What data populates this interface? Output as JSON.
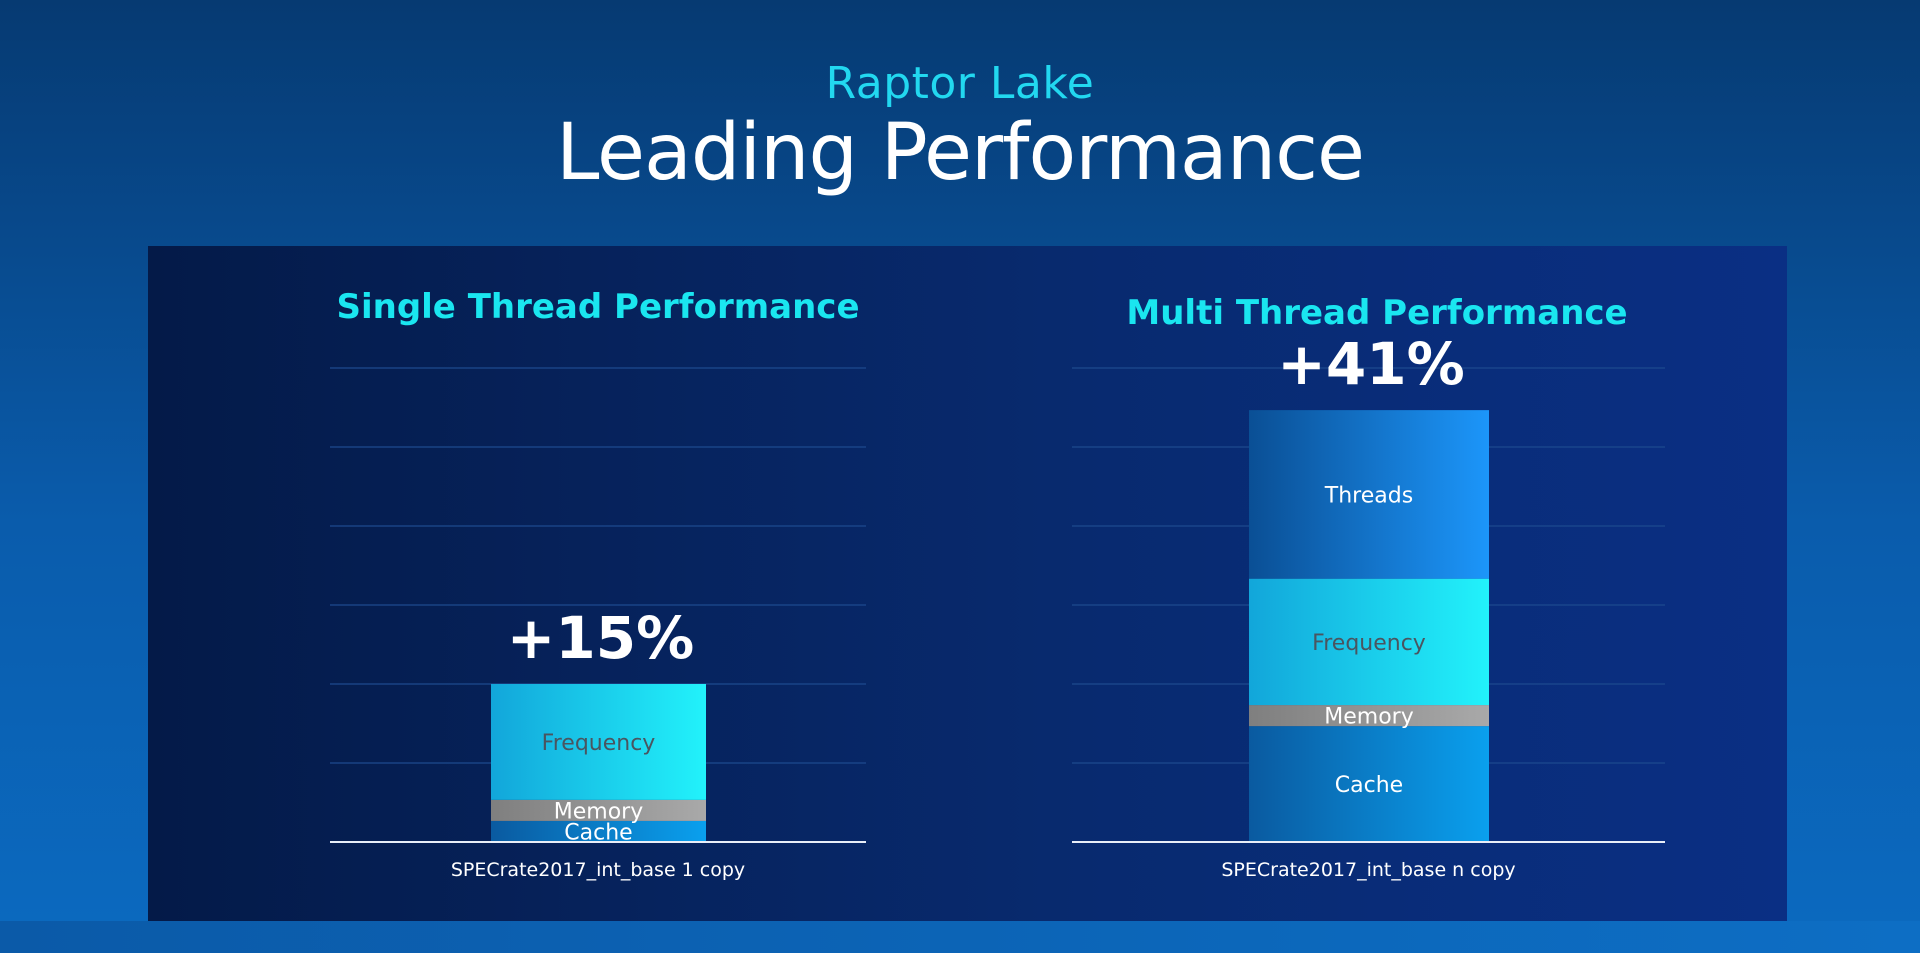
{
  "header": {
    "subtitle": "Raptor Lake",
    "title": "Leading Performance"
  },
  "chart_data": [
    {
      "type": "bar",
      "stacked": true,
      "title": "Single Thread Performance",
      "xlabel": "SPECrate2017_int_base 1 copy",
      "total_label": "+15%",
      "total": 15,
      "ylim": [
        0,
        45
      ],
      "grid": true,
      "series": [
        {
          "name": "Cache",
          "value": 2,
          "color": "#0a8fe0"
        },
        {
          "name": "Memory",
          "value": 2,
          "color": "#9a9a9a"
        },
        {
          "name": "Frequency",
          "value": 11,
          "color": "#20e6f2"
        }
      ]
    },
    {
      "type": "bar",
      "stacked": true,
      "title": "Multi Thread Performance",
      "xlabel": "SPECrate2017_int_base n copy",
      "total_label": "+41%",
      "total": 41,
      "ylim": [
        0,
        45
      ],
      "grid": true,
      "series": [
        {
          "name": "Cache",
          "value": 11,
          "color": "#0a8fe0"
        },
        {
          "name": "Memory",
          "value": 2,
          "color": "#9a9a9a"
        },
        {
          "name": "Frequency",
          "value": 12,
          "color": "#14e0f2"
        },
        {
          "name": "Threads",
          "value": 16,
          "color": "#1a8ff0"
        }
      ]
    }
  ]
}
